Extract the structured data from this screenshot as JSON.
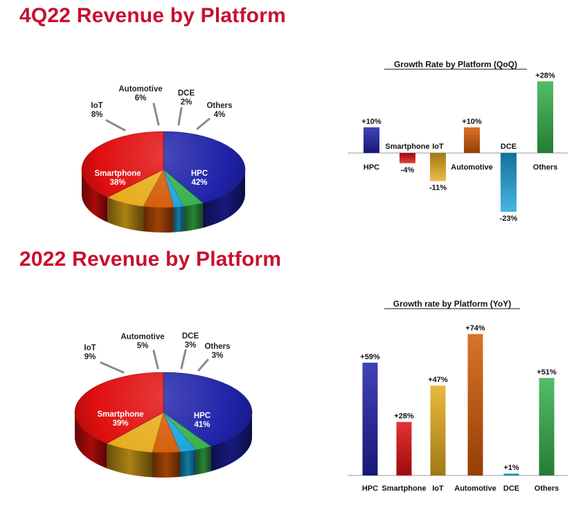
{
  "titles": {
    "quarter": "4Q22 Revenue by Platform",
    "year": "2022 Revenue by Platform"
  },
  "colors": {
    "heading": "#c8102e",
    "HPC": "#1f22a8",
    "Smartphone": "#e00f0f",
    "IoT": "#e6ad1c",
    "Automotive": "#d45a06",
    "DCE": "#1aa3dc",
    "Others": "#35b14b"
  },
  "chart_data": [
    {
      "type": "pie",
      "title": "4Q22 Revenue by Platform",
      "slices": [
        {
          "label": "HPC",
          "value": 42,
          "text": "42%"
        },
        {
          "label": "Smartphone",
          "value": 38,
          "text": "38%"
        },
        {
          "label": "IoT",
          "value": 8,
          "text": "8%"
        },
        {
          "label": "Automotive",
          "value": 6,
          "text": "6%"
        },
        {
          "label": "DCE",
          "value": 2,
          "text": "2%"
        },
        {
          "label": "Others",
          "value": 4,
          "text": "4%"
        }
      ]
    },
    {
      "type": "bar",
      "title": "Growth Rate by Platform (QoQ)",
      "categories": [
        "HPC",
        "Smartphone",
        "IoT",
        "Automotive",
        "DCE",
        "Others"
      ],
      "values": [
        10,
        -4,
        -11,
        10,
        -23,
        28
      ],
      "value_labels": [
        "+10%",
        "-4%",
        "-11%",
        "+10%",
        "-23%",
        "+28%"
      ],
      "ylim": [
        -30,
        30
      ]
    },
    {
      "type": "pie",
      "title": "2022 Revenue by Platform",
      "slices": [
        {
          "label": "HPC",
          "value": 41,
          "text": "41%"
        },
        {
          "label": "Smartphone",
          "value": 39,
          "text": "39%"
        },
        {
          "label": "IoT",
          "value": 9,
          "text": "9%"
        },
        {
          "label": "Automotive",
          "value": 5,
          "text": "5%"
        },
        {
          "label": "DCE",
          "value": 3,
          "text": "3%"
        },
        {
          "label": "Others",
          "value": 3,
          "text": "3%"
        }
      ]
    },
    {
      "type": "bar",
      "title": "Growth rate by Platform (YoY)",
      "categories": [
        "HPC",
        "Smartphone",
        "IoT",
        "Automotive",
        "DCE",
        "Others"
      ],
      "values": [
        59,
        28,
        47,
        74,
        1,
        51
      ],
      "value_labels": [
        "+59%",
        "+28%",
        "+47%",
        "+74%",
        "+1%",
        "+51%"
      ],
      "ylim": [
        0,
        80
      ]
    }
  ]
}
